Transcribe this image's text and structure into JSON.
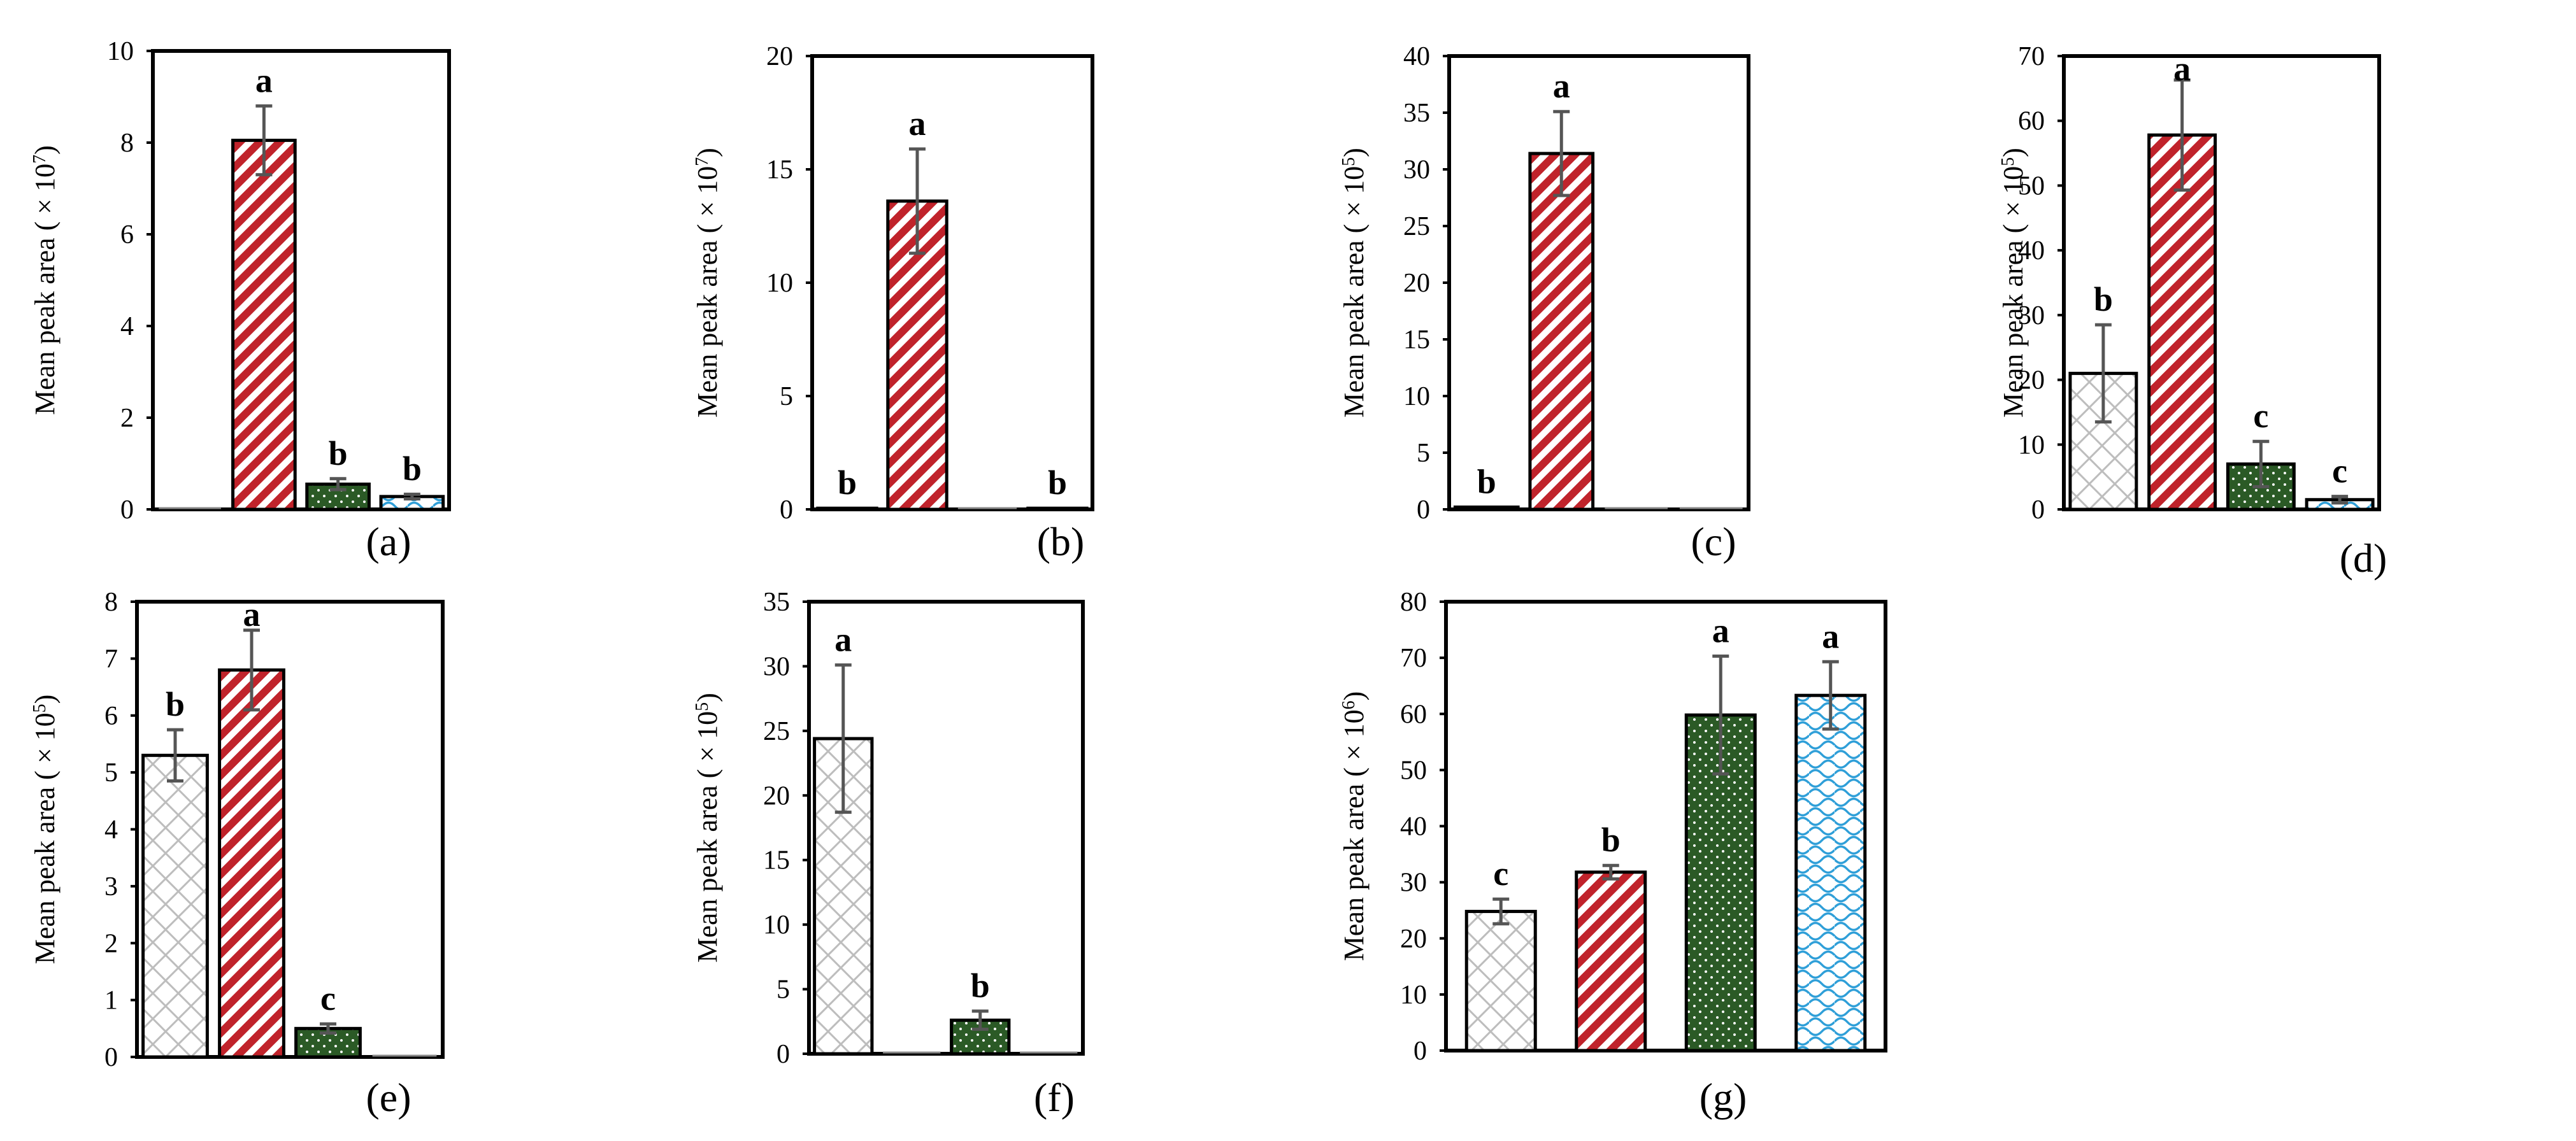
{
  "chart_data": [
    {
      "panel": "(a)",
      "type": "bar",
      "ylabel": "Mean peak area ( × 10",
      "exponent": "7",
      "ylabel_end": ")",
      "ylim": [
        0,
        10
      ],
      "ticks": [
        "0",
        "2",
        "4",
        "6",
        "8",
        "10"
      ],
      "values": [
        0,
        8.05,
        0.55,
        0.28
      ],
      "errors": [
        0,
        0.75,
        0.12,
        0.05
      ],
      "letters": [
        "",
        "a",
        "b",
        "b"
      ]
    },
    {
      "panel": "(b)",
      "type": "bar",
      "ylabel": "Mean peak area ( × 10",
      "exponent": "7",
      "ylabel_end": ")",
      "ylim": [
        0,
        20
      ],
      "ticks": [
        "0",
        "5",
        "10",
        "15",
        "20"
      ],
      "values": [
        0.05,
        13.6,
        0,
        0.05
      ],
      "errors": [
        0,
        2.3,
        0,
        0
      ],
      "letters": [
        "b",
        "a",
        "",
        "b"
      ]
    },
    {
      "panel": "(c)",
      "type": "bar",
      "ylabel": "Mean peak area ( × 10",
      "exponent": "5",
      "ylabel_end": ")",
      "ylim": [
        0,
        40
      ],
      "ticks": [
        "0",
        "5",
        "10",
        "15",
        "20",
        "25",
        "30",
        "35",
        "40"
      ],
      "values": [
        0.2,
        31.4,
        0,
        0
      ],
      "errors": [
        0,
        3.7,
        0,
        0
      ],
      "letters": [
        "b",
        "a",
        "",
        ""
      ]
    },
    {
      "panel": "(d)",
      "type": "bar",
      "ylabel": "Mean peak area ( × 10",
      "exponent": "5",
      "ylabel_end": ")",
      "ylim": [
        0,
        70
      ],
      "ticks": [
        "0",
        "10",
        "20",
        "30",
        "40",
        "50",
        "60",
        "70"
      ],
      "values": [
        21,
        57.8,
        7,
        1.5
      ],
      "errors": [
        7.5,
        8.5,
        3.5,
        0.5
      ],
      "letters": [
        "b",
        "a",
        "c",
        "c"
      ]
    },
    {
      "panel": "(e)",
      "type": "bar",
      "ylabel": "Mean peak area ( × 10",
      "exponent": "5",
      "ylabel_end": ")",
      "ylim": [
        0,
        8
      ],
      "ticks": [
        "0",
        "1",
        "2",
        "3",
        "4",
        "5",
        "6",
        "7",
        "8"
      ],
      "values": [
        5.3,
        6.8,
        0.5,
        0
      ],
      "errors": [
        0.45,
        0.7,
        0.08,
        0
      ],
      "letters": [
        "b",
        "a",
        "c",
        ""
      ]
    },
    {
      "panel": "(f)",
      "type": "bar",
      "ylabel": "Mean peak area ( × 10",
      "exponent": "5",
      "ylabel_end": ")",
      "ylim": [
        0,
        35
      ],
      "ticks": [
        "0",
        "5",
        "10",
        "15",
        "20",
        "25",
        "30",
        "35"
      ],
      "values": [
        24.4,
        0,
        2.6,
        0
      ],
      "errors": [
        5.7,
        0,
        0.7,
        0
      ],
      "letters": [
        "a",
        "",
        "b",
        ""
      ]
    },
    {
      "panel": "(g)",
      "type": "bar",
      "ylabel": "Mean peak area ( × 10",
      "exponent": "6",
      "ylabel_end": ")",
      "ylim": [
        0,
        80
      ],
      "ticks": [
        "0",
        "10",
        "20",
        "30",
        "40",
        "50",
        "60",
        "70",
        "80"
      ],
      "values": [
        24.8,
        31.8,
        59.8,
        63.3
      ],
      "errors": [
        2.2,
        1.2,
        10.5,
        6
      ],
      "letters": [
        "c",
        "b",
        "a",
        "a"
      ]
    }
  ],
  "series_styles": [
    {
      "name": "crosshatch",
      "color": "#bdbdbd",
      "fill": "#ffffff"
    },
    {
      "name": "red-diagonal",
      "color": "#c0232b",
      "fill": "#ffffff"
    },
    {
      "name": "green-dotted",
      "color": "#2b5a26",
      "fill": "#ffffff"
    },
    {
      "name": "blue-wave",
      "color": "#2f9fd8",
      "fill": "#ffffff"
    }
  ]
}
